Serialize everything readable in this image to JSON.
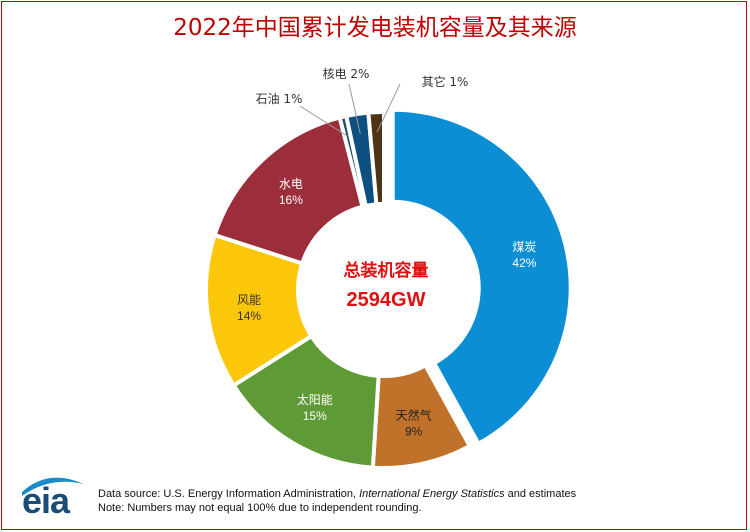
{
  "title": "2022年中国累计发电装机容量及其来源",
  "center_label": {
    "line1": "总装机容量",
    "line2": "2594GW"
  },
  "chart_data": {
    "type": "pie",
    "donut": true,
    "title": "2022年中国累计发电装机容量及其来源",
    "slices": [
      {
        "name": "煤炭",
        "label": "42%",
        "value": 42,
        "color": "#0b8ed3"
      },
      {
        "name": "天然气",
        "label": "9%",
        "value": 9,
        "color": "#c0722a"
      },
      {
        "name": "太阳能",
        "label": "15%",
        "value": 15,
        "color": "#5e9a35"
      },
      {
        "name": "风能",
        "label": "14%",
        "value": 14,
        "color": "#fdc709"
      },
      {
        "name": "水电",
        "label": "16%",
        "value": 16,
        "color": "#9b2e3a"
      },
      {
        "name": "石油",
        "label": "1%",
        "value": 0.6,
        "color": "#1f4e6b"
      },
      {
        "name": "核电",
        "label": "2%",
        "value": 2,
        "color": "#0e4f82"
      },
      {
        "name": "其它",
        "label": "1%",
        "value": 1.4,
        "color": "#4e3414"
      }
    ]
  },
  "footer": {
    "logo": "eia",
    "source_prefix": "Data source: U.S. Energy Information Administration, ",
    "source_italic": "International Energy Statistics",
    "source_suffix": " and estimates",
    "note": "Note: Numbers may not equal 100% due to independent rounding."
  }
}
